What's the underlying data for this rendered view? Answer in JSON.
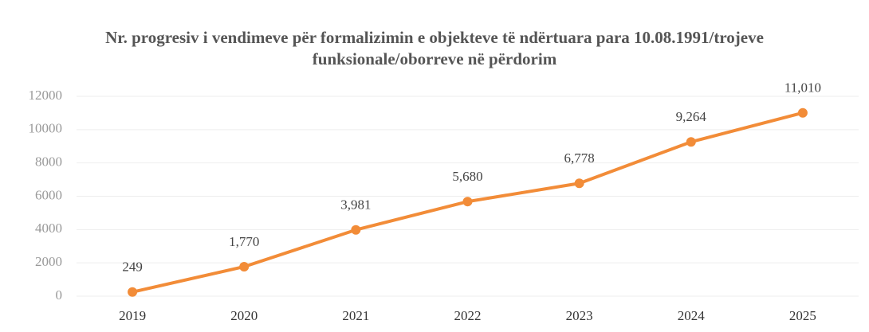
{
  "chart_data": {
    "type": "line",
    "title": "Nr. progresiv i vendimeve për formalizimin e objekteve të ndërtuara para 10.08.1991/trojeve funksionale/oborreve në përdorim",
    "categories": [
      "2019",
      "2020",
      "2021",
      "2022",
      "2023",
      "2024",
      "2025"
    ],
    "series": [
      {
        "name": "Nr. progresiv",
        "color": "#f28c38",
        "values": [
          249,
          1770,
          3981,
          5680,
          6778,
          9264,
          11010
        ],
        "value_labels": [
          "249",
          "1,770",
          "3,981",
          "5,680",
          "6,778",
          "9,264",
          "11,010"
        ]
      }
    ],
    "ylim": [
      0,
      12000
    ],
    "yticks": [
      0,
      2000,
      4000,
      6000,
      8000,
      10000,
      12000
    ],
    "grid": true
  }
}
